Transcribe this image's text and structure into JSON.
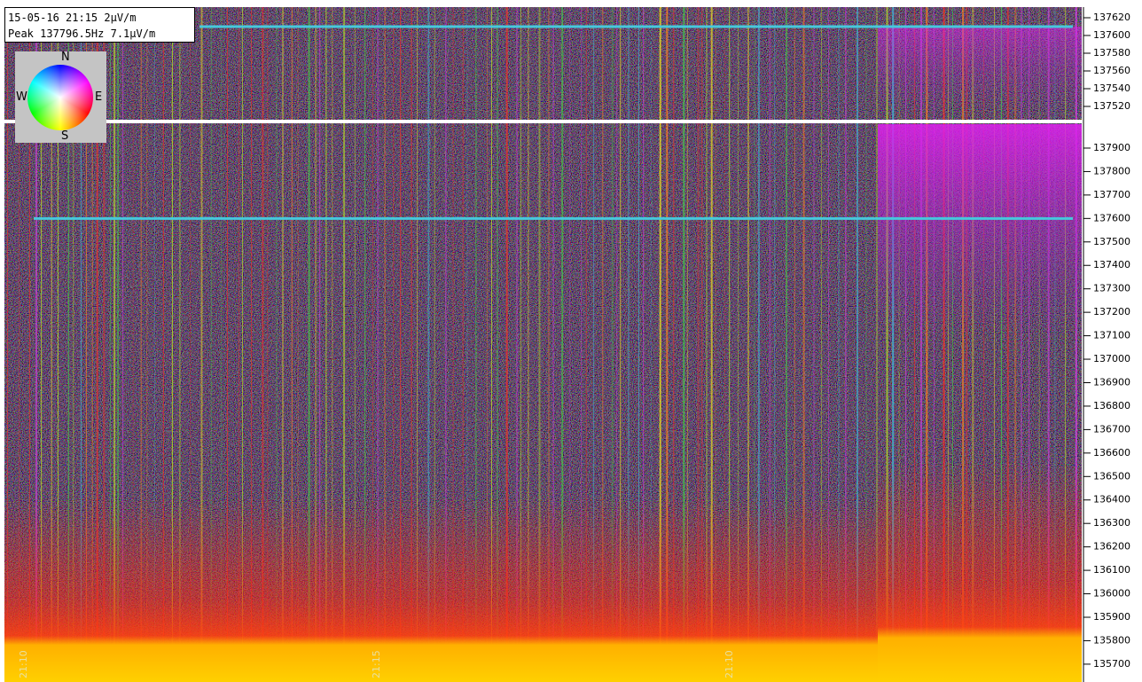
{
  "chart_data": [
    {
      "type": "spectrogram",
      "ylim": [
        137505,
        137632
      ],
      "yticks": [
        137520,
        137540,
        137560,
        137580,
        137600,
        137620
      ],
      "markers": [
        {
          "value": 137610,
          "color": "#46c8dc"
        }
      ]
    },
    {
      "type": "spectrogram",
      "ylim": [
        135624,
        138002
      ],
      "yticks": [
        135700,
        135800,
        135900,
        136000,
        136100,
        136200,
        136300,
        136400,
        136500,
        136600,
        136700,
        136800,
        136900,
        137000,
        137100,
        137200,
        137300,
        137400,
        137500,
        137600,
        137700,
        137800,
        137900
      ],
      "markers": [
        {
          "value": 137600,
          "color": "#46c8dc"
        }
      ],
      "categories": [
        "21:10",
        "21:15",
        "21:10"
      ]
    }
  ],
  "overlay": {
    "info": [
      "15-05-16 21:15 2µV/m",
      "Peak 137796.5Hz 7.1µV/m"
    ],
    "compass": {
      "north": "N",
      "east": "E",
      "south": "S",
      "west": "W"
    }
  }
}
